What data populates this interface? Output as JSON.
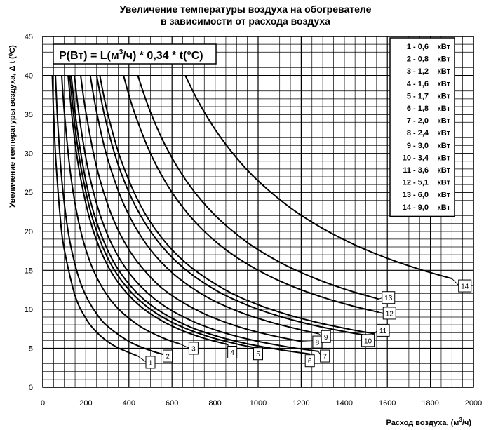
{
  "chart_data": {
    "type": "line",
    "title_line1": "Увеличение температуры воздуха на обогревателе",
    "title_line2": "в зависимости от расхода воздуха",
    "xlabel_prefix": "Расход воздуха, (м",
    "xlabel_sup": "3",
    "xlabel_suffix": "/ч)",
    "ylabel": "Увеличение температуры воздуха, Δ t (⁰С)",
    "formula_a": "P(Вт) = L(м",
    "formula_sup": "3",
    "formula_b": "/ч) * 0,34 * t(°С)",
    "xlim": [
      0,
      2000
    ],
    "ylim": [
      0,
      45
    ],
    "x_ticks": [
      0,
      200,
      400,
      600,
      800,
      1000,
      1200,
      1400,
      1600,
      1800,
      2000
    ],
    "y_ticks": [
      0,
      5,
      10,
      15,
      20,
      25,
      30,
      35,
      40,
      45
    ],
    "grid": true,
    "legend_position": "top-right",
    "series": [
      {
        "label": "1",
        "legend_value": "0,6",
        "unit": "кВт",
        "power_kw": 0.6,
        "x": [
          44,
          50,
          60,
          80,
          100,
          150,
          200,
          250,
          300,
          350,
          440
        ],
        "tag": "1",
        "tag_x": 500,
        "tag_y": 3.2
      },
      {
        "label": "2",
        "legend_value": "0,8",
        "unit": "кВт",
        "power_kw": 0.8,
        "x": [
          59,
          70,
          90,
          120,
          160,
          200,
          250,
          300,
          400,
          500,
          580
        ],
        "tag": "2",
        "tag_x": 580,
        "tag_y": 4
      },
      {
        "label": "3",
        "legend_value": "1,2",
        "unit": "кВт",
        "power_kw": 1.2,
        "x": [
          88,
          100,
          130,
          170,
          220,
          280,
          350,
          450,
          550,
          640
        ],
        "tag": "3",
        "tag_x": 700,
        "tag_y": 5
      },
      {
        "label": "4",
        "legend_value": "1,6",
        "unit": "кВт",
        "power_kw": 1.6,
        "x": [
          118,
          140,
          170,
          220,
          280,
          350,
          450,
          550,
          650,
          750,
          860
        ],
        "tag": "4",
        "tag_x": 880,
        "tag_y": 4.5
      },
      {
        "label": "5",
        "legend_value": "1,7",
        "unit": "кВт",
        "power_kw": 1.7,
        "x": [
          125,
          150,
          180,
          230,
          300,
          380,
          480,
          600,
          750,
          900,
          1000
        ],
        "tag": "5",
        "tag_x": 1000,
        "tag_y": 4.3
      },
      {
        "label": "6",
        "legend_value": "1,8",
        "unit": "кВт",
        "power_kw": 1.8,
        "x": [
          132,
          160,
          200,
          250,
          320,
          400,
          500,
          650,
          800,
          950,
          1100,
          1240
        ],
        "tag": "6",
        "tag_x": 1240,
        "tag_y": 3.4
      },
      {
        "label": "7",
        "legend_value": "2,0",
        "unit": "кВт",
        "power_kw": 2.0,
        "x": [
          147,
          170,
          210,
          270,
          340,
          430,
          550,
          700,
          850,
          1000,
          1150,
          1280
        ],
        "tag": "7",
        "tag_x": 1310,
        "tag_y": 4
      },
      {
        "label": "8",
        "legend_value": "2,4",
        "unit": "кВт",
        "power_kw": 2.4,
        "x": [
          176,
          200,
          250,
          320,
          400,
          500,
          600,
          750,
          900,
          1050,
          1200
        ],
        "tag": "8",
        "tag_x": 1275,
        "tag_y": 5.8
      },
      {
        "label": "9",
        "legend_value": "3,0",
        "unit": "кВт",
        "power_kw": 3.0,
        "x": [
          221,
          250,
          300,
          380,
          480,
          600,
          750,
          900,
          1050,
          1200,
          1280
        ],
        "tag": "9",
        "tag_x": 1315,
        "tag_y": 6.5
      },
      {
        "label": "10",
        "legend_value": "3,4",
        "unit": "кВт",
        "power_kw": 3.4,
        "x": [
          250,
          290,
          350,
          430,
          530,
          650,
          800,
          950,
          1100,
          1250,
          1400,
          1500
        ],
        "tag": "10",
        "tag_x": 1510,
        "tag_y": 6
      },
      {
        "label": "11",
        "legend_value": "3,6",
        "unit": "кВт",
        "power_kw": 3.6,
        "x": [
          265,
          300,
          360,
          450,
          550,
          680,
          850,
          1000,
          1150,
          1300,
          1450,
          1540
        ],
        "tag": "11",
        "tag_x": 1580,
        "tag_y": 7.3
      },
      {
        "label": "12",
        "legend_value": "5,1",
        "unit": "кВт",
        "power_kw": 5.1,
        "x": [
          375,
          420,
          500,
          600,
          720,
          850,
          1000,
          1150,
          1300,
          1450,
          1560
        ],
        "tag": "12",
        "tag_x": 1610,
        "tag_y": 9.5
      },
      {
        "label": "13",
        "legend_value": "6,0",
        "unit": "кВт",
        "power_kw": 6.0,
        "x": [
          441,
          500,
          580,
          680,
          800,
          950,
          1100,
          1250,
          1400,
          1560
        ],
        "tag": "13",
        "tag_x": 1605,
        "tag_y": 11.5
      },
      {
        "label": "14",
        "legend_value": "9,0",
        "unit": "кВт",
        "power_kw": 9.0,
        "x": [
          662,
          720,
          800,
          900,
          1000,
          1150,
          1300,
          1450,
          1600,
          1750,
          1900
        ],
        "tag": "14",
        "tag_x": 1960,
        "tag_y": 13
      }
    ]
  }
}
